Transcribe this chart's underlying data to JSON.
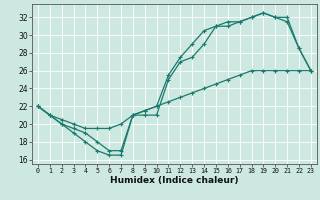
{
  "title": "",
  "xlabel": "Humidex (Indice chaleur)",
  "ylabel": "",
  "bg_color": "#cce8e0",
  "line_color": "#1a7a6e",
  "grid_color": "#ffffff",
  "xlim": [
    -0.5,
    23.5
  ],
  "ylim": [
    15.5,
    33.5
  ],
  "xticks": [
    0,
    1,
    2,
    3,
    4,
    5,
    6,
    7,
    8,
    9,
    10,
    11,
    12,
    13,
    14,
    15,
    16,
    17,
    18,
    19,
    20,
    21,
    22,
    23
  ],
  "yticks": [
    16,
    18,
    20,
    22,
    24,
    26,
    28,
    30,
    32
  ],
  "line1_x": [
    0,
    1,
    2,
    3,
    4,
    5,
    6,
    7,
    8,
    9,
    10,
    11,
    12,
    13,
    14,
    15,
    16,
    17,
    18,
    19,
    20,
    21,
    22,
    23
  ],
  "line1_y": [
    22,
    21,
    20,
    19,
    18,
    17,
    16.5,
    16.5,
    21,
    21,
    21,
    25,
    27,
    27.5,
    29,
    31,
    31,
    31.5,
    32,
    32.5,
    32,
    31.5,
    28.5,
    26
  ],
  "line2_x": [
    0,
    1,
    2,
    3,
    4,
    5,
    6,
    7,
    8,
    9,
    10,
    11,
    12,
    13,
    14,
    15,
    16,
    17,
    18,
    19,
    20,
    21,
    22,
    23
  ],
  "line2_y": [
    22,
    21,
    20,
    19.5,
    19,
    18,
    17,
    17,
    21,
    21.5,
    22,
    25.5,
    27.5,
    29,
    30.5,
    31,
    31.5,
    31.5,
    32,
    32.5,
    32,
    32,
    28.5,
    26
  ],
  "line3_x": [
    0,
    1,
    2,
    3,
    4,
    5,
    6,
    7,
    8,
    9,
    10,
    11,
    12,
    13,
    14,
    15,
    16,
    17,
    18,
    19,
    20,
    21,
    22,
    23
  ],
  "line3_y": [
    22,
    21,
    20.5,
    20,
    19.5,
    19.5,
    19.5,
    20,
    21,
    21.5,
    22,
    22.5,
    23,
    23.5,
    24,
    24.5,
    25,
    25.5,
    26,
    26,
    26,
    26,
    26,
    26
  ]
}
